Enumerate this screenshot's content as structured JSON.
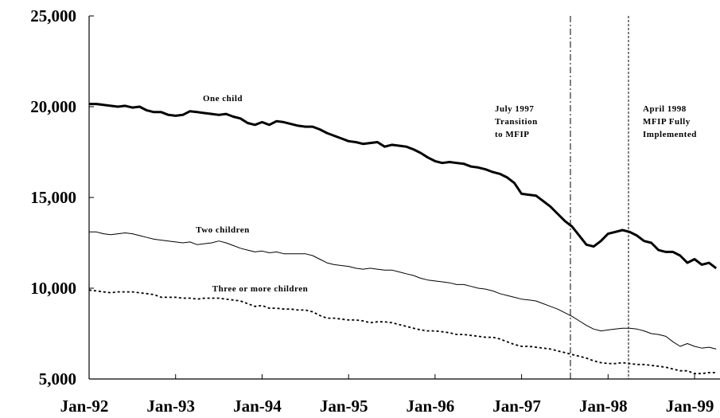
{
  "chart_data": {
    "type": "line",
    "categories": [
      "Jan-92",
      null,
      null,
      null,
      null,
      null,
      null,
      null,
      null,
      null,
      null,
      null,
      "Jan-93",
      null,
      null,
      null,
      null,
      null,
      null,
      null,
      null,
      null,
      null,
      null,
      "Jan-94",
      null,
      null,
      null,
      null,
      null,
      null,
      null,
      null,
      null,
      null,
      null,
      "Jan-95",
      null,
      null,
      null,
      null,
      null,
      null,
      null,
      null,
      null,
      null,
      null,
      "Jan-96",
      null,
      null,
      null,
      null,
      null,
      null,
      null,
      null,
      null,
      null,
      null,
      "Jan-97",
      null,
      null,
      null,
      null,
      null,
      null,
      null,
      null,
      null,
      null,
      null,
      "Jan-98",
      null,
      null,
      null,
      null,
      null,
      null,
      null,
      null,
      null,
      null,
      null,
      "Jan-99",
      null,
      null,
      null
    ],
    "series": [
      {
        "name": "One child",
        "color": "#000000",
        "style": "thick",
        "values": [
          20150,
          20150,
          20100,
          20050,
          20000,
          20050,
          19950,
          20000,
          19800,
          19700,
          19700,
          19550,
          19500,
          19550,
          19750,
          19700,
          19650,
          19600,
          19550,
          19600,
          19450,
          19350,
          19100,
          19000,
          19150,
          19000,
          19200,
          19150,
          19050,
          18950,
          18900,
          18900,
          18750,
          18550,
          18400,
          18250,
          18100,
          18050,
          17950,
          18000,
          18050,
          17800,
          17900,
          17850,
          17800,
          17650,
          17450,
          17200,
          17000,
          16900,
          16950,
          16900,
          16850,
          16700,
          16650,
          16550,
          16400,
          16300,
          16100,
          15800,
          15200,
          15150,
          15100,
          14800,
          14500,
          14100,
          13700,
          13400,
          12900,
          12400,
          12300,
          12600,
          13000,
          13100,
          13200,
          13100,
          12900,
          12600,
          12500,
          12100,
          12000,
          12000,
          11800,
          11400,
          11600,
          11300,
          11400,
          11100
        ]
      },
      {
        "name": "Two children",
        "color": "#000000",
        "style": "thin",
        "values": [
          13100,
          13100,
          13000,
          12950,
          13000,
          13050,
          13000,
          12900,
          12800,
          12700,
          12650,
          12600,
          12550,
          12500,
          12550,
          12400,
          12450,
          12500,
          12600,
          12500,
          12350,
          12200,
          12100,
          12000,
          12050,
          11950,
          12000,
          11900,
          11900,
          11900,
          11900,
          11800,
          11600,
          11400,
          11300,
          11250,
          11200,
          11100,
          11050,
          11100,
          11050,
          11000,
          11000,
          10900,
          10800,
          10700,
          10550,
          10450,
          10400,
          10350,
          10300,
          10200,
          10200,
          10100,
          10000,
          9950,
          9850,
          9700,
          9600,
          9500,
          9400,
          9350,
          9300,
          9150,
          9000,
          8850,
          8650,
          8450,
          8200,
          7950,
          7750,
          7650,
          7700,
          7750,
          7800,
          7800,
          7750,
          7650,
          7500,
          7450,
          7350,
          7050,
          6800,
          6950,
          6800,
          6700,
          6750,
          6650
        ]
      },
      {
        "name": "Three or more children",
        "color": "#000000",
        "style": "dashed",
        "values": [
          9900,
          9850,
          9800,
          9750,
          9800,
          9800,
          9800,
          9750,
          9700,
          9650,
          9500,
          9500,
          9500,
          9450,
          9450,
          9400,
          9450,
          9450,
          9450,
          9400,
          9350,
          9300,
          9150,
          9000,
          9050,
          8900,
          8900,
          8850,
          8850,
          8800,
          8800,
          8700,
          8500,
          8350,
          8350,
          8300,
          8250,
          8250,
          8200,
          8100,
          8150,
          8150,
          8100,
          8000,
          7900,
          7800,
          7700,
          7650,
          7650,
          7600,
          7550,
          7450,
          7450,
          7400,
          7350,
          7300,
          7300,
          7200,
          7050,
          6900,
          6800,
          6800,
          6750,
          6700,
          6650,
          6550,
          6450,
          6350,
          6250,
          6150,
          6000,
          5900,
          5850,
          5850,
          5900,
          5850,
          5800,
          5800,
          5750,
          5700,
          5650,
          5550,
          5450,
          5450,
          5300,
          5300,
          5350,
          5350
        ]
      }
    ],
    "ylim": [
      5000,
      25000
    ],
    "yticks": [
      {
        "value": 5000,
        "label": "5,000"
      },
      {
        "value": 10000,
        "label": "10,000"
      },
      {
        "value": 15000,
        "label": "15,000"
      },
      {
        "value": 20000,
        "label": "20,000"
      },
      {
        "value": 25000,
        "label": "25,000"
      }
    ],
    "annotations": [
      {
        "lines": [
          "July 1997",
          "Transition",
          "to MFIP"
        ]
      },
      {
        "lines": [
          "April 1998",
          "MFIP Fully",
          "Implemented"
        ]
      }
    ]
  }
}
